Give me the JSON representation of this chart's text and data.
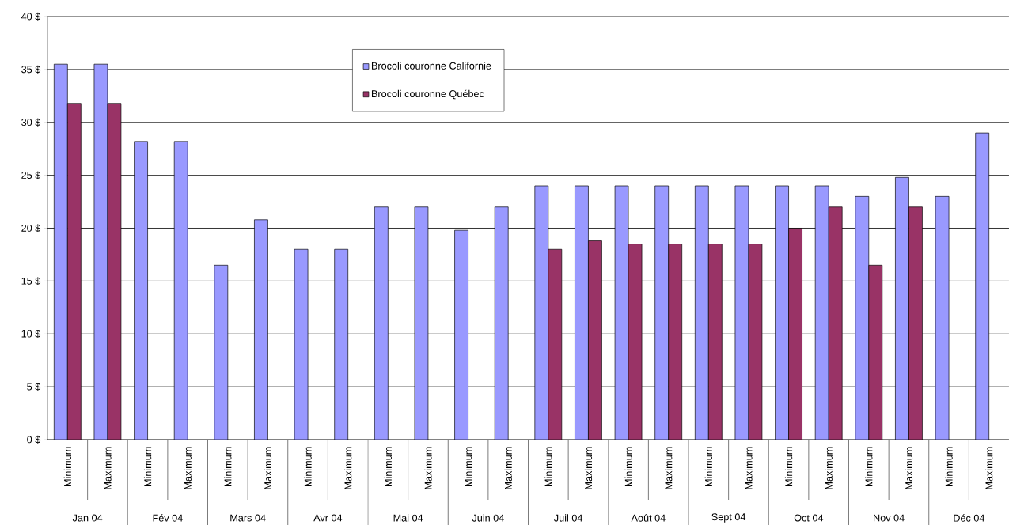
{
  "chart_data": {
    "type": "bar",
    "categories": [
      "Minimum",
      "Maximum",
      "Minimum",
      "Maximum",
      "Minimum",
      "Maximum",
      "Minimum",
      "Maximum",
      "Minimum",
      "Maximum",
      "Minimum",
      "Maximum",
      "Minimum",
      "Maximum",
      "Minimum",
      "Maximum",
      "Minimum",
      "Maximum",
      "Minimum",
      "Maximum",
      "Minimum",
      "Maximum",
      "Minimum",
      "Maximum"
    ],
    "series": [
      {
        "name": "Brocoli couronne Californie",
        "color": "#9999ff",
        "values": [
          35.5,
          35.5,
          28.2,
          28.2,
          16.5,
          20.8,
          18,
          18,
          22,
          22,
          19.8,
          22,
          24,
          24,
          24,
          24,
          24,
          24,
          24,
          24,
          23,
          24.8,
          23,
          29
        ]
      },
      {
        "name": "Brocoli couronne Québec",
        "color": "#993366",
        "values": [
          31.8,
          31.8,
          null,
          null,
          null,
          null,
          null,
          null,
          null,
          null,
          null,
          null,
          18,
          18.8,
          18.5,
          18.5,
          18.5,
          18.5,
          20,
          22,
          16.5,
          22,
          null,
          null
        ]
      }
    ],
    "annotations": [
      "Jan 04",
      "Fév 04",
      "Mars 04",
      "Avr 04",
      "Mai 04",
      "Juin 04",
      "Juil 04",
      "Août 04",
      "Sept 04",
      "Oct 04",
      "Nov 04",
      "Déc 04"
    ],
    "ylim": [
      0,
      40
    ],
    "yticks": [
      {
        "value": 0,
        "label": "0 $"
      },
      {
        "value": 5,
        "label": "5 $"
      },
      {
        "value": 10,
        "label": "10 $"
      },
      {
        "value": 15,
        "label": "15 $"
      },
      {
        "value": 20,
        "label": "20 $"
      },
      {
        "value": 25,
        "label": "25 $"
      },
      {
        "value": 30,
        "label": "30 $"
      },
      {
        "value": 35,
        "label": "35 $"
      },
      {
        "value": 40,
        "label": "40 $"
      }
    ],
    "grid": "y",
    "legend": "top"
  }
}
